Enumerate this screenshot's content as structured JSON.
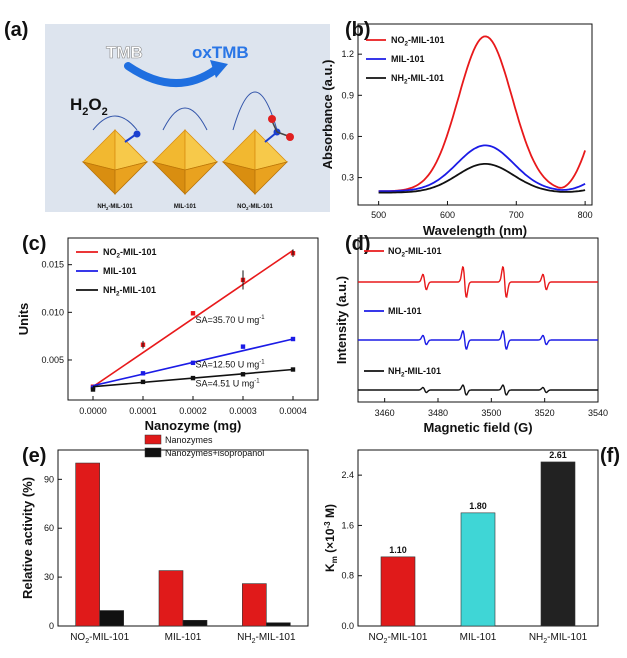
{
  "panels": {
    "a": {
      "label": "(a)",
      "tmb": "TMB",
      "oxtmb": "oxTMB",
      "h2o2": "H",
      "h2o2_sub": "2",
      "h2o2_o": "O",
      "h2o2_sub2": "2",
      "structures": [
        "NH2-MIL-101",
        "MIL-101",
        "NO2-MIL-101"
      ],
      "colors": {
        "crystal": "#f2b830",
        "crystal_dark": "#d98e10",
        "arrow": "#1f6fe0",
        "oxtmb": "#2a76e6",
        "bg": "#dde4ee"
      }
    },
    "b": {
      "label": "(b)"
    },
    "c": {
      "label": "(c)"
    },
    "d": {
      "label": "(d)"
    },
    "e": {
      "label": "(e)"
    },
    "f": {
      "label": "(f)"
    }
  },
  "chart_data": [
    {
      "panel": "b",
      "type": "line",
      "xlabel": "Wavelength (nm)",
      "ylabel": "Absorbance (a.u.)",
      "xlim": [
        470,
        810
      ],
      "ylim": [
        0.1,
        1.42
      ],
      "xticks": [
        500,
        600,
        700,
        800
      ],
      "yticks": [
        0.3,
        0.6,
        0.9,
        1.2
      ],
      "legend_position": "top-left",
      "series": [
        {
          "name": "NO2-MIL-101",
          "name_main": "NO",
          "name_sub": "2",
          "name_rest": "-MIL-101",
          "color": "#e8191b",
          "base": 0.2,
          "peak": 1.33,
          "center": 655,
          "width": 55,
          "end": 0.53
        },
        {
          "name": "MIL-101",
          "name_main": "MIL-101",
          "name_sub": "",
          "name_rest": "",
          "color": "#1b1be6",
          "base": 0.2,
          "peak": 0.535,
          "center": 655,
          "width": 58,
          "end": 0.26
        },
        {
          "name": "NH2-MIL-101",
          "name_main": "NH",
          "name_sub": "2",
          "name_rest": "-MIL-101",
          "color": "#111111",
          "base": 0.19,
          "peak": 0.4,
          "center": 655,
          "width": 58,
          "end": 0.21
        }
      ]
    },
    {
      "panel": "c",
      "type": "scatter",
      "xlabel": "Nanozyme (mg)",
      "ylabel": "Units",
      "xlim": [
        -5e-05,
        0.00045
      ],
      "ylim": [
        0.0008,
        0.0178
      ],
      "xticks": [
        "0.0000",
        "0.0001",
        "0.0002",
        "0.0003",
        "0.0004"
      ],
      "yticks": [
        "0.005",
        "0.010",
        "0.015"
      ],
      "legend_position": "top-left",
      "series": [
        {
          "name": "NO2-MIL-101",
          "name_main": "NO",
          "name_sub": "2",
          "name_rest": "-MIL-101",
          "color": "#e8191b",
          "x": [
            0,
            0.0001,
            0.0002,
            0.0003,
            0.0004
          ],
          "y": [
            0.0022,
            0.0066,
            0.0099,
            0.0134,
            0.0162
          ],
          "fit": [
            0.0022,
            0.0165
          ]
        },
        {
          "name": "MIL-101",
          "name_main": "MIL-101",
          "name_sub": "",
          "name_rest": "",
          "color": "#1b1be6",
          "x": [
            0,
            0.0001,
            0.0002,
            0.0003,
            0.0004
          ],
          "y": [
            0.0021,
            0.0036,
            0.0047,
            0.0064,
            0.0072
          ],
          "fit": [
            0.0023,
            0.0072
          ]
        },
        {
          "name": "NH2-MIL-101",
          "name_main": "NH",
          "name_sub": "2",
          "name_rest": "-MIL-101",
          "color": "#111111",
          "x": [
            0,
            0.0001,
            0.0002,
            0.0003,
            0.0004
          ],
          "y": [
            0.0019,
            0.0027,
            0.0031,
            0.0035,
            0.004
          ],
          "fit": [
            0.0022,
            0.004
          ]
        }
      ],
      "annotations": [
        {
          "text": "SA=35.70 U mg",
          "sup": "-1"
        },
        {
          "text": "SA=12.50 U mg",
          "sup": "-1"
        },
        {
          "text": "SA=4.51 U mg",
          "sup": "-1"
        }
      ]
    },
    {
      "panel": "d",
      "type": "line",
      "xlabel": "Magnetic field (G)",
      "ylabel": "Intensity (a.u.)",
      "xlim": [
        3450,
        3540
      ],
      "xticks": [
        3460,
        3480,
        3500,
        3520,
        3540
      ],
      "peak_positions": [
        3475,
        3490,
        3505,
        3520
      ],
      "peak_relative_heights": [
        1,
        2,
        2,
        1
      ],
      "series": [
        {
          "name": "NO2-MIL-101",
          "name_main": "NO",
          "name_sub": "2",
          "name_rest": "-MIL-101",
          "color": "#e8191b",
          "amplitude": 1.0
        },
        {
          "name": "MIL-101",
          "name_main": "MIL-101",
          "name_sub": "",
          "name_rest": "",
          "color": "#1b1be6",
          "amplitude": 0.6
        },
        {
          "name": "NH2-MIL-101",
          "name_main": "NH",
          "name_sub": "2",
          "name_rest": "-MIL-101",
          "color": "#111111",
          "amplitude": 0.33
        }
      ]
    },
    {
      "panel": "e",
      "type": "bar",
      "ylabel": "Relative activity (%)",
      "ylim": [
        0,
        108
      ],
      "yticks": [
        0,
        30,
        60,
        90
      ],
      "legend_position": "top-right",
      "categories": [
        {
          "main": "NO",
          "sub": "2",
          "rest": "-MIL-101"
        },
        {
          "main": "MIL-101",
          "sub": "",
          "rest": ""
        },
        {
          "main": "NH",
          "sub": "2",
          "rest": "-MIL-101"
        }
      ],
      "series": [
        {
          "name": "Nanozymes",
          "color": "#e01a1a",
          "values": [
            100,
            34,
            26
          ]
        },
        {
          "name": "Nanozymes+isopropanol",
          "color": "#111111",
          "values": [
            9.5,
            3.5,
            2
          ]
        }
      ]
    },
    {
      "panel": "f",
      "type": "bar",
      "ylabel_main": "K",
      "ylabel_sub": "m",
      "ylabel_rest": " (×10",
      "ylabel_sup": "-3",
      "ylabel_end": " M)",
      "ylim": [
        0,
        2.8
      ],
      "yticks": [
        "0.0",
        "0.8",
        "1.6",
        "2.4"
      ],
      "categories": [
        {
          "main": "NO",
          "sub": "2",
          "rest": "-MIL-101"
        },
        {
          "main": "MIL-101",
          "sub": "",
          "rest": ""
        },
        {
          "main": "NH",
          "sub": "2",
          "rest": "-MIL-101"
        }
      ],
      "values": [
        1.1,
        1.8,
        2.61
      ],
      "value_labels": [
        "1.10",
        "1.80",
        "2.61"
      ],
      "colors": [
        "#e01a1a",
        "#3fd6d6",
        "#222222"
      ]
    }
  ]
}
